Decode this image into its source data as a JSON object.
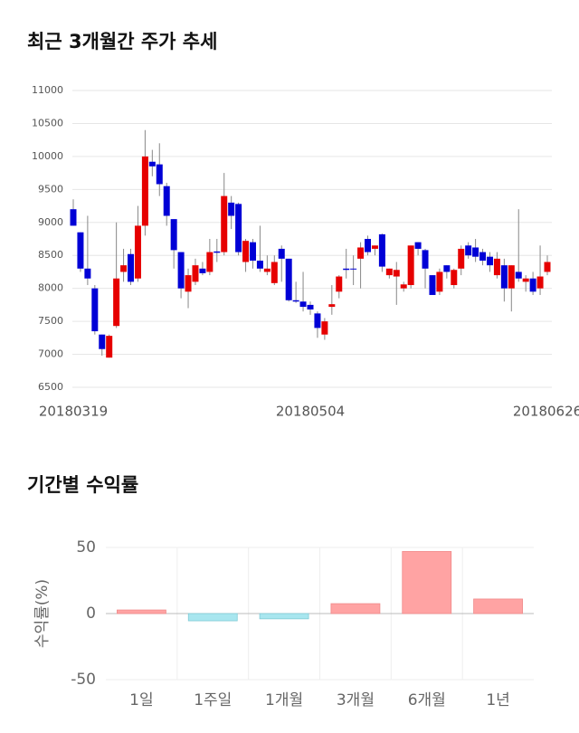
{
  "chart_data": [
    {
      "type": "candlestick",
      "title": "최근 3개월간 주가 추세",
      "categories": [
        "20180319",
        null,
        null,
        null,
        null,
        null,
        null,
        null,
        null,
        null,
        null,
        null,
        null,
        null,
        null,
        null,
        null,
        null,
        null,
        null,
        null,
        null,
        null,
        null,
        null,
        null,
        null,
        null,
        null,
        null,
        null,
        null,
        null,
        "20180504",
        null,
        null,
        null,
        null,
        null,
        null,
        null,
        null,
        null,
        null,
        null,
        null,
        null,
        null,
        null,
        null,
        null,
        null,
        null,
        null,
        null,
        null,
        null,
        null,
        null,
        null,
        null,
        null,
        null,
        null,
        null,
        null,
        "20180626"
      ],
      "open": [
        9200,
        8850,
        8300,
        8000,
        7300,
        6950,
        7430,
        8250,
        8520,
        8150,
        8950,
        9920,
        9880,
        9550,
        9050,
        8550,
        7950,
        8100,
        8300,
        8250,
        8560,
        8550,
        9300,
        9280,
        8400,
        8700,
        8420,
        8250,
        8080,
        8600,
        8450,
        7820,
        7800,
        7750,
        7620,
        7300,
        7720,
        7950,
        8300,
        8300,
        8450,
        8750,
        8600,
        8820,
        8200,
        8180,
        8000,
        8050,
        8700,
        8580,
        8200,
        7950,
        8350,
        8050,
        8300,
        8650,
        8620,
        8550,
        8480,
        8200,
        8350,
        8000,
        8250,
        8100,
        8150,
        8000,
        8250
      ],
      "high": [
        9350,
        8850,
        9100,
        8050,
        7300,
        7300,
        9000,
        8600,
        8600,
        9250,
        10400,
        10100,
        10200,
        9600,
        9050,
        8550,
        8300,
        8450,
        8400,
        8750,
        8750,
        9750,
        9400,
        9300,
        8750,
        8750,
        8950,
        8500,
        8500,
        8650,
        8450,
        8100,
        8250,
        7800,
        7650,
        7550,
        8050,
        8200,
        8600,
        8500,
        8700,
        8800,
        8650,
        8830,
        8300,
        8400,
        8100,
        8650,
        8700,
        8600,
        8200,
        8300,
        8350,
        8300,
        8650,
        8700,
        8750,
        8600,
        8550,
        8550,
        8450,
        8350,
        9200,
        8200,
        8250,
        8650,
        8500
      ],
      "low": [
        8950,
        8250,
        8050,
        7300,
        6980,
        6950,
        7400,
        8100,
        8050,
        8100,
        8800,
        9700,
        9400,
        8950,
        8300,
        7850,
        7700,
        8050,
        8200,
        8200,
        8400,
        8500,
        8900,
        8500,
        8250,
        8300,
        8250,
        8200,
        8050,
        8100,
        7800,
        7780,
        7650,
        7600,
        7250,
        7220,
        7600,
        7850,
        8150,
        8050,
        8000,
        8500,
        8500,
        8250,
        8150,
        7750,
        7950,
        8000,
        8500,
        8000,
        7900,
        7900,
        8150,
        8000,
        8200,
        8450,
        8400,
        8350,
        8250,
        8150,
        7800,
        7650,
        8100,
        7950,
        7900,
        7900,
        8200
      ],
      "close": [
        8950,
        8300,
        8150,
        7350,
        7080,
        7280,
        8150,
        8350,
        8100,
        8950,
        10000,
        9850,
        9580,
        9100,
        8580,
        8000,
        8200,
        8350,
        8230,
        8550,
        8540,
        9400,
        9100,
        8550,
        8720,
        8420,
        8300,
        8300,
        8400,
        8450,
        7820,
        7800,
        7720,
        7680,
        7400,
        7500,
        7760,
        8180,
        8280,
        8290,
        8620,
        8550,
        8650,
        8330,
        8300,
        8280,
        8060,
        8650,
        8600,
        8300,
        7900,
        8250,
        8250,
        8280,
        8600,
        8500,
        8480,
        8420,
        8350,
        8450,
        8000,
        8350,
        8150,
        8150,
        7950,
        8180,
        8400
      ],
      "up_color": "#e60000",
      "down_color": "#0000d6",
      "ylim": [
        6500,
        11000
      ],
      "yticks": [
        6500,
        7000,
        7500,
        8000,
        8500,
        9000,
        9500,
        10000,
        10500,
        11000
      ],
      "grid": true
    },
    {
      "type": "bar",
      "title": "기간별 수익률",
      "ylabel": "수익률(%)",
      "categories": [
        "1일",
        "1주일",
        "1개월",
        "3개월",
        "6개월",
        "1년"
      ],
      "values": [
        2.7,
        -5.5,
        -4,
        7.5,
        47,
        11
      ],
      "positive_color": "#ffa3a3",
      "negative_color": "#a8e6ef",
      "ylim": [
        -50,
        50
      ],
      "yticks": [
        -50,
        0,
        50
      ],
      "grid": true
    }
  ]
}
